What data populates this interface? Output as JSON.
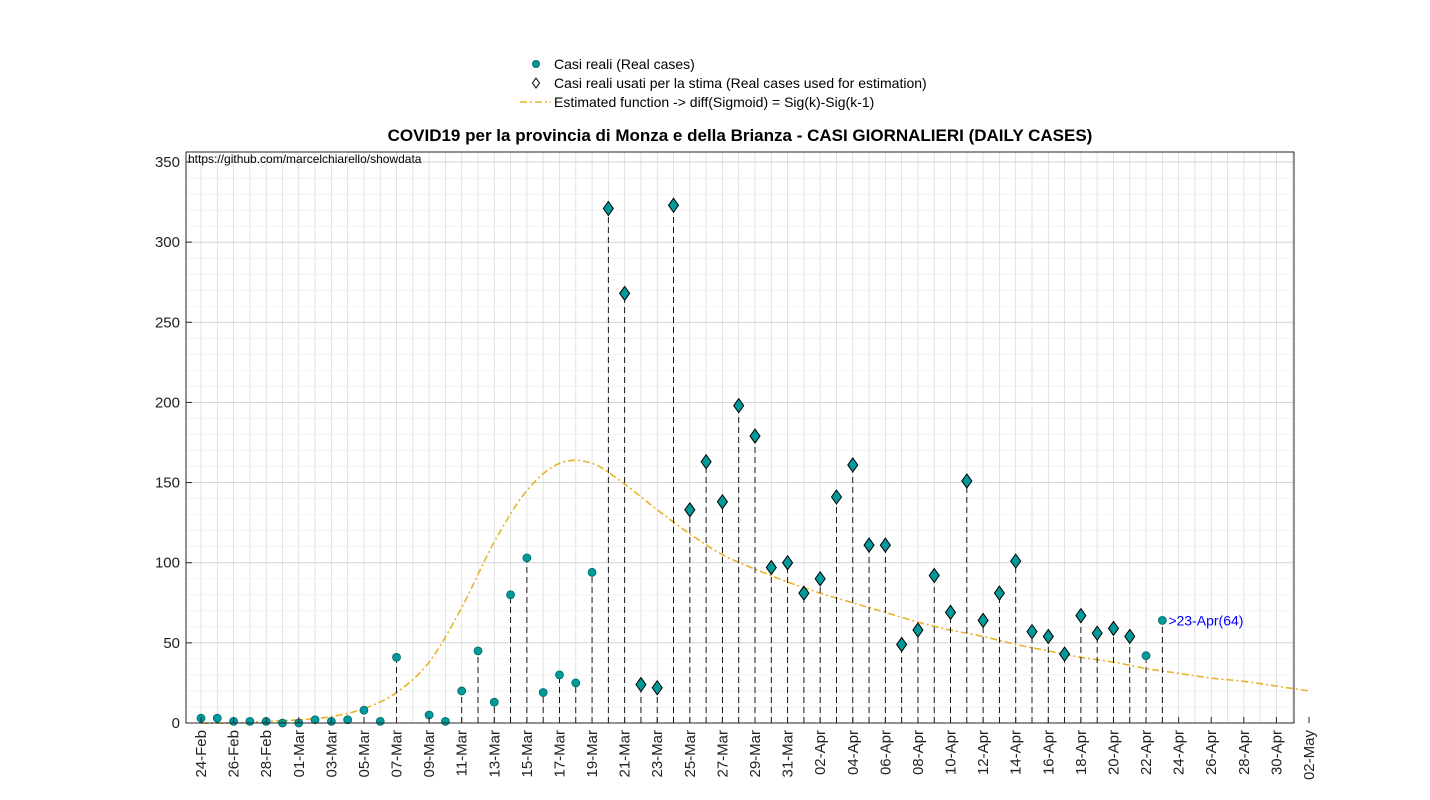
{
  "chart_data": {
    "type": "scatter",
    "title": "COVID19 per la provincia di Monza e della Brianza - CASI GIORNALIERI (DAILY CASES)",
    "source_text": "https://github.com/marcelchiarello/showdata",
    "xlabel": "",
    "ylabel": "",
    "ylim": [
      0,
      350
    ],
    "yticks": [
      0,
      50,
      100,
      150,
      200,
      250,
      300,
      350
    ],
    "xlim_days": [
      0,
      68
    ],
    "xtick_labels": [
      "24-Feb",
      "26-Feb",
      "28-Feb",
      "01-Mar",
      "03-Mar",
      "05-Mar",
      "07-Mar",
      "09-Mar",
      "11-Mar",
      "13-Mar",
      "15-Mar",
      "17-Mar",
      "19-Mar",
      "21-Mar",
      "23-Mar",
      "25-Mar",
      "27-Mar",
      "29-Mar",
      "31-Mar",
      "02-Apr",
      "04-Apr",
      "06-Apr",
      "08-Apr",
      "10-Apr",
      "12-Apr",
      "14-Apr",
      "16-Apr",
      "18-Apr",
      "20-Apr",
      "22-Apr",
      "24-Apr",
      "26-Apr",
      "28-Apr",
      "30-Apr",
      "02-May"
    ],
    "grid": true,
    "legend_placement": "top-center",
    "legend": [
      {
        "label": "Casi reali (Real cases)",
        "marker": "circle"
      },
      {
        "label": "Casi reali usati per la stima (Real cases used for estimation)",
        "marker": "diamond"
      },
      {
        "label": "Estimated function -> diff(Sigmoid) = Sig(k)-Sig(k-1)",
        "marker": "dashdot-line"
      }
    ],
    "series": [
      {
        "name": "Casi reali (Real cases)",
        "dates": [
          "24-Feb",
          "25-Feb",
          "26-Feb",
          "27-Feb",
          "28-Feb",
          "29-Feb",
          "01-Mar",
          "02-Mar",
          "03-Mar",
          "04-Mar",
          "05-Mar",
          "06-Mar",
          "07-Mar",
          "08-Mar",
          "09-Mar",
          "10-Mar",
          "11-Mar",
          "12-Mar",
          "13-Mar",
          "14-Mar",
          "15-Mar",
          "16-Mar",
          "17-Mar",
          "18-Mar",
          "19-Mar",
          "20-Mar",
          "21-Mar",
          "22-Mar",
          "23-Mar",
          "24-Mar",
          "25-Mar",
          "26-Mar",
          "27-Mar",
          "28-Mar",
          "29-Mar",
          "30-Mar",
          "31-Mar",
          "01-Apr",
          "02-Apr",
          "03-Apr",
          "04-Apr",
          "05-Apr",
          "06-Apr",
          "07-Apr",
          "08-Apr",
          "09-Apr",
          "10-Apr",
          "11-Apr",
          "12-Apr",
          "13-Apr",
          "14-Apr",
          "15-Apr",
          "16-Apr",
          "17-Apr",
          "18-Apr",
          "19-Apr",
          "20-Apr",
          "21-Apr",
          "22-Apr",
          "23-Apr"
        ],
        "values": [
          3,
          3,
          1,
          1,
          1,
          0,
          0,
          2,
          1,
          2,
          8,
          1,
          41,
          null,
          5,
          1,
          20,
          45,
          13,
          80,
          103,
          19,
          30,
          25,
          94,
          321,
          268,
          24,
          22,
          323,
          133,
          163,
          138,
          198,
          179,
          97,
          100,
          81,
          90,
          141,
          161,
          111,
          111,
          49,
          58,
          92,
          69,
          151,
          64,
          81,
          101,
          57,
          54,
          43,
          67,
          56,
          59,
          54,
          42,
          64
        ]
      },
      {
        "name": "Casi reali usati per la stima (Real cases used for estimation)",
        "dates": [
          "20-Mar",
          "21-Mar",
          "22-Mar",
          "23-Mar",
          "24-Mar",
          "25-Mar",
          "26-Mar",
          "27-Mar",
          "28-Mar",
          "29-Mar",
          "30-Mar",
          "31-Mar",
          "01-Apr",
          "02-Apr",
          "03-Apr",
          "04-Apr",
          "05-Apr",
          "06-Apr",
          "07-Apr",
          "08-Apr",
          "09-Apr",
          "10-Apr",
          "11-Apr",
          "12-Apr",
          "13-Apr",
          "14-Apr",
          "15-Apr",
          "16-Apr",
          "17-Apr",
          "18-Apr",
          "19-Apr",
          "20-Apr",
          "21-Apr"
        ],
        "values": [
          321,
          268,
          24,
          22,
          323,
          133,
          163,
          138,
          198,
          179,
          97,
          100,
          81,
          90,
          141,
          161,
          111,
          111,
          49,
          58,
          92,
          69,
          151,
          64,
          81,
          101,
          57,
          54,
          43,
          67,
          56,
          59,
          54
        ]
      },
      {
        "name": "Estimated function -> diff(Sigmoid) = Sig(k)-Sig(k-1)",
        "days": [
          0,
          2,
          4,
          6,
          8,
          10,
          12,
          14,
          16,
          18,
          20,
          22,
          24,
          26,
          28,
          30,
          32,
          34,
          36,
          38,
          40,
          42,
          44,
          46,
          48,
          50,
          52,
          54,
          56,
          58,
          60,
          62,
          64,
          66,
          68
        ],
        "values": [
          0,
          0,
          1,
          2,
          4,
          9,
          19,
          38,
          72,
          113,
          145,
          162,
          162,
          149,
          133,
          118,
          105,
          96,
          88,
          81,
          75,
          69,
          63,
          58,
          54,
          49,
          45,
          41,
          38,
          34,
          31,
          28,
          26,
          23,
          20
        ]
      }
    ],
    "annotation": {
      "text": ">23-Apr(64)",
      "date": "23-Apr",
      "value": 64
    },
    "colors": {
      "real_marker": "#009a9a",
      "real_marker_edge": "#00696b",
      "diamond_edge": "#000000",
      "estimate_line": "#e8b22a",
      "stem": "#000000",
      "grid": "#dcdcdc",
      "annotation": "#0000ff"
    }
  }
}
